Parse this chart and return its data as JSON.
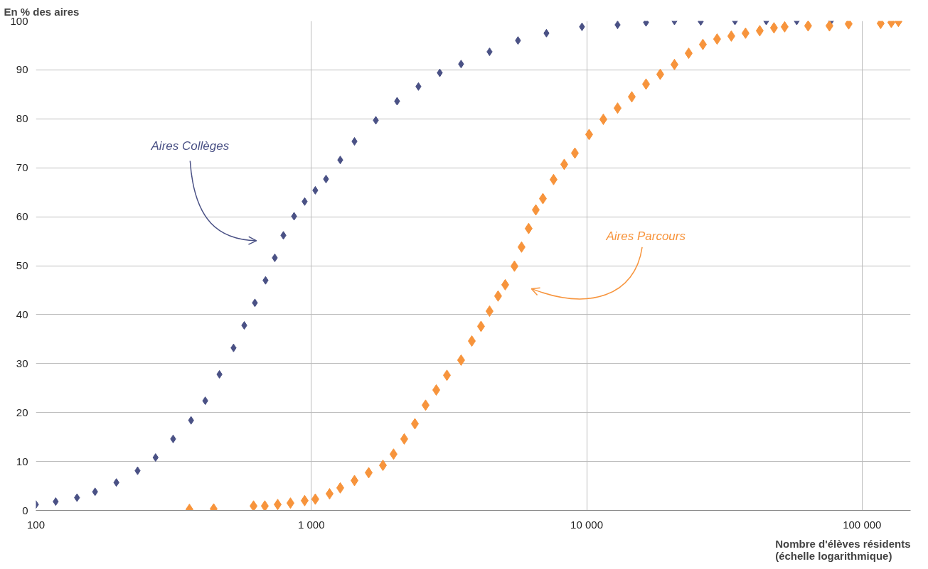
{
  "chart_data": {
    "type": "scatter",
    "xlabel": "Nombre d'élèves résidents\n(échelle logarithmique)",
    "ylabel": "En % des aires",
    "log": "x",
    "marker": "diamond",
    "grid": true,
    "xlim": [
      100,
      150000
    ],
    "ylim": [
      0,
      100
    ],
    "xticks": [
      100,
      {
        "value": 1000,
        "label": "1 000"
      },
      {
        "value": 10000,
        "label": "10 000"
      },
      {
        "value": 100000,
        "label": "100 000"
      }
    ],
    "yticks": [
      0,
      10,
      20,
      30,
      40,
      50,
      60,
      70,
      80,
      90,
      100
    ],
    "series": [
      {
        "name": "Aires Collèges",
        "color": "#4a5185",
        "x": [
          100,
          118,
          141,
          164,
          196,
          234,
          272,
          315,
          366,
          412,
          464,
          522,
          571,
          624,
          682,
          737,
          792,
          866,
          946,
          1034,
          1131,
          1274,
          1435,
          1715,
          2049,
          2449,
          2928,
          3499,
          4439,
          5630,
          7143,
          9616,
          12947,
          16425,
          20830,
          25950,
          34550,
          44870,
          57900,
          77100
        ],
        "values": [
          1.2,
          1.8,
          2.6,
          3.8,
          5.7,
          8.1,
          10.8,
          14.6,
          18.4,
          22.4,
          27.8,
          33.2,
          37.8,
          42.4,
          47.0,
          51.6,
          56.2,
          60.1,
          63.1,
          65.4,
          67.7,
          71.6,
          75.4,
          79.7,
          83.6,
          86.6,
          89.4,
          91.2,
          93.7,
          96.0,
          97.5,
          98.8,
          99.2,
          99.7,
          100,
          99.9,
          100,
          100,
          100,
          100
        ]
      },
      {
        "name": "Aires Parcours",
        "color": "#f7943c",
        "x": [
          361,
          442,
          617,
          678,
          755,
          840,
          946,
          1034,
          1165,
          1274,
          1435,
          1616,
          1820,
          1989,
          2175,
          2378,
          2600,
          2843,
          3108,
          3499,
          3827,
          4133,
          4439,
          4767,
          5060,
          5466,
          5800,
          6155,
          6534,
          6934,
          7581,
          8288,
          9061,
          10205,
          11494,
          12947,
          14580,
          16425,
          18494,
          20830,
          23460,
          26420,
          29750,
          33510,
          37740,
          42500,
          47870,
          52340,
          63680,
          76120,
          89390,
          116800,
          127700,
          135500
        ],
        "values": [
          0.2,
          0.3,
          0.9,
          0.9,
          1.2,
          1.5,
          2.0,
          2.3,
          3.4,
          4.6,
          6.1,
          7.7,
          9.2,
          11.5,
          14.6,
          17.7,
          21.5,
          24.6,
          27.6,
          30.7,
          34.6,
          37.6,
          40.7,
          43.8,
          46.1,
          49.9,
          53.8,
          57.6,
          61.4,
          63.7,
          67.6,
          70.7,
          73.0,
          76.8,
          79.9,
          82.2,
          84.5,
          87.1,
          89.1,
          91.1,
          93.4,
          95.2,
          96.3,
          96.9,
          97.5,
          98.0,
          98.6,
          98.8,
          99.0,
          99.0,
          99.4,
          99.5,
          99.7,
          99.9
        ]
      }
    ]
  }
}
